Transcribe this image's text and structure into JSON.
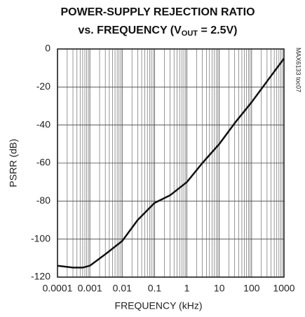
{
  "chart_data": {
    "type": "line",
    "title": "POWER-SUPPLY REJECTION RATIO",
    "subtitle": [
      "vs. FREQUENCY (V",
      "OUT",
      " = 2.5V)"
    ],
    "annotation": "MAX6133 toc07",
    "x_label": "FREQUENCY (kHz)",
    "y_label": "PSRR (dB)",
    "x_log": true,
    "x": [
      0.0001,
      0.0003,
      0.0006,
      0.001,
      0.003,
      0.01,
      0.03,
      0.1,
      0.3,
      1,
      3,
      10,
      30,
      100,
      300,
      1000
    ],
    "series": [
      {
        "name": "PSRR",
        "color": "#111111",
        "values": [
          -114,
          -115,
          -115,
          -114,
          -108,
          -101,
          -90,
          -81,
          -77,
          -70,
          -60,
          -50,
          -39,
          -28,
          -17,
          -5
        ]
      }
    ],
    "xlim": [
      0.0001,
      1000
    ],
    "xticks": [
      0.0001,
      0.001,
      0.01,
      0.1,
      1,
      10,
      100,
      1000
    ],
    "ylim": [
      -120,
      0
    ],
    "yticks": [
      0,
      -20,
      -40,
      -60,
      -80,
      -100,
      -120
    ],
    "grid": true
  }
}
